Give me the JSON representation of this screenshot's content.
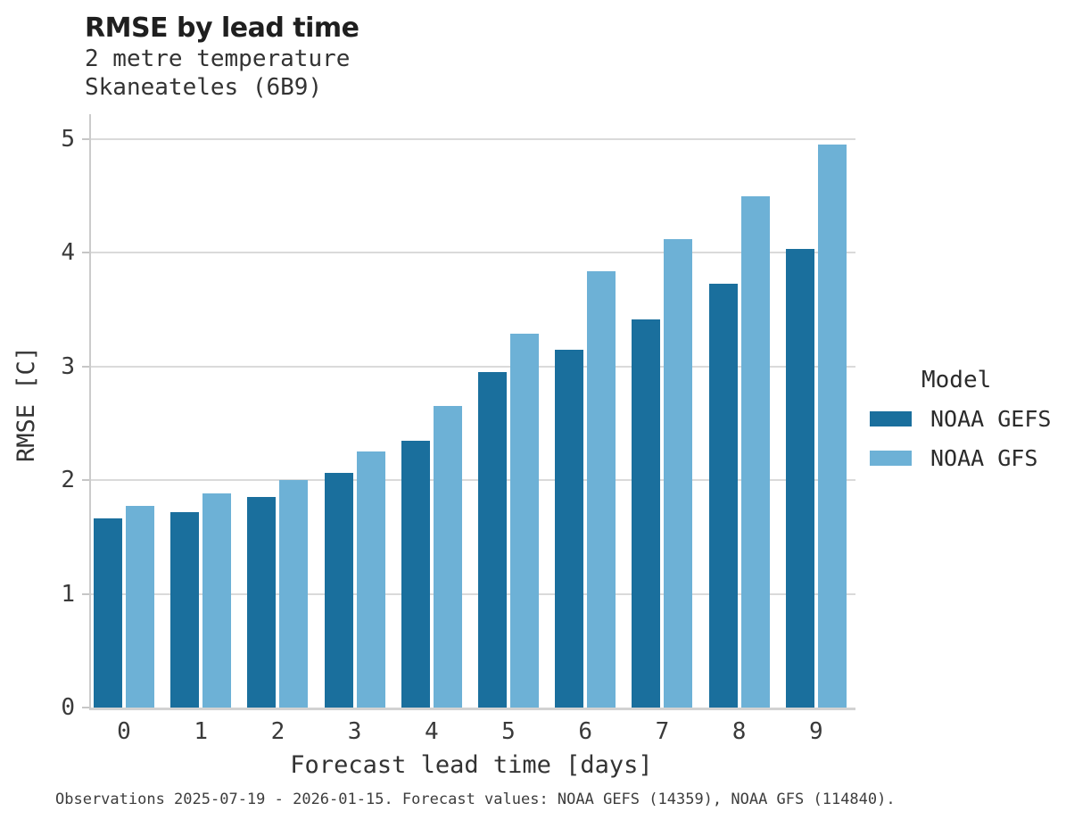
{
  "chart_data": {
    "type": "bar",
    "title": "RMSE by lead time",
    "subtitle": [
      "2 metre temperature",
      "Skaneateles (6B9)"
    ],
    "xlabel": "Forecast lead time [days]",
    "ylabel": "RMSE [C]",
    "categories": [
      "0",
      "1",
      "2",
      "3",
      "4",
      "5",
      "6",
      "7",
      "8",
      "9"
    ],
    "yticks": [
      "0",
      "1",
      "2",
      "3",
      "4",
      "5"
    ],
    "ylim": [
      0,
      5.2
    ],
    "grid": "horizontal",
    "legend": {
      "title": "Model",
      "position": "right"
    },
    "series": [
      {
        "name": "NOAA GEFS",
        "color": "#1a6f9d",
        "values": [
          1.66,
          1.72,
          1.85,
          2.06,
          2.35,
          2.95,
          3.15,
          3.41,
          3.73,
          4.03
        ]
      },
      {
        "name": "NOAA GFS",
        "color": "#6db1d6",
        "values": [
          1.77,
          1.88,
          2.0,
          2.25,
          2.65,
          3.29,
          3.84,
          4.12,
          4.5,
          4.95
        ]
      }
    ]
  },
  "colors": {
    "gridline": "#dadada",
    "axis": "#cbcbcb",
    "text": "#333333"
  },
  "caption": "Observations 2025-07-19 - 2026-01-15. Forecast values: NOAA GEFS (14359), NOAA GFS (114840)."
}
